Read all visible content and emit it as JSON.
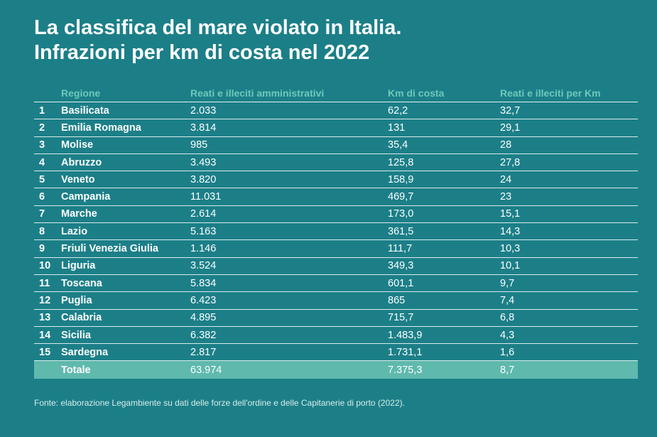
{
  "title": {
    "line1": "La classifica del mare violato in Italia.",
    "line2": "Infrazioni per km di costa nel 2022"
  },
  "colors": {
    "background": "#1c7f88",
    "header_text": "#6ec9bb",
    "total_row": "#5fb9ad"
  },
  "chart_data": {
    "type": "table",
    "title": "La classifica del mare violato in Italia. Infrazioni per km di costa nel 2022",
    "columns": [
      "",
      "Regione",
      "Reati e illeciti amministrativi",
      "Km di costa",
      "Reati e illeciti per Km"
    ],
    "rows": [
      [
        "1",
        "Basilicata",
        "2.033",
        "62,2",
        "32,7"
      ],
      [
        "2",
        "Emilia Romagna",
        "3.814",
        "131",
        "29,1"
      ],
      [
        "3",
        "Molise",
        "985",
        "35,4",
        "28"
      ],
      [
        "4",
        "Abruzzo",
        "3.493",
        "125,8",
        "27,8"
      ],
      [
        "5",
        "Veneto",
        "3.820",
        "158,9",
        "24"
      ],
      [
        "6",
        "Campania",
        "11.031",
        "469,7",
        "23"
      ],
      [
        "7",
        "Marche",
        "2.614",
        "173,0",
        "15,1"
      ],
      [
        "8",
        "Lazio",
        "5.163",
        "361,5",
        "14,3"
      ],
      [
        "9",
        "Friuli Venezia Giulia",
        "1.146",
        "111,7",
        "10,3"
      ],
      [
        "10",
        "Liguria",
        "3.524",
        "349,3",
        "10,1"
      ],
      [
        "11",
        "Toscana",
        "5.834",
        "601,1",
        "9,7"
      ],
      [
        "12",
        "Puglia",
        "6.423",
        "865",
        "7,4"
      ],
      [
        "13",
        "Calabria",
        "4.895",
        "715,7",
        "6,8"
      ],
      [
        "14",
        "Sicilia",
        "6.382",
        "1.483,9",
        "4,3"
      ],
      [
        "15",
        "Sardegna",
        "2.817",
        "1.731,1",
        "1,6"
      ]
    ],
    "total": [
      "",
      "Totale",
      "63.974",
      "7.375,3",
      "8,7"
    ]
  },
  "source": "Fonte: elaborazione Legambiente su dati delle forze dell'ordine e delle Capitanerie di porto (2022)."
}
